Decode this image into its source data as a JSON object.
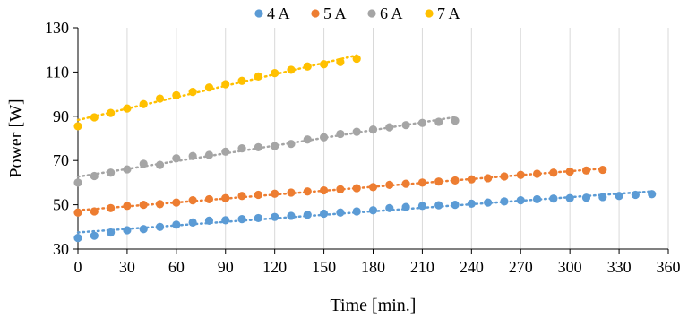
{
  "chart_data": {
    "type": "scatter",
    "title": "",
    "xlabel": "Time [min.]",
    "ylabel": "Power [W]",
    "xlim": [
      0,
      360
    ],
    "ylim": [
      30,
      130
    ],
    "x_ticks": [
      0,
      30,
      60,
      90,
      120,
      150,
      180,
      210,
      240,
      270,
      300,
      330,
      360
    ],
    "y_ticks": [
      30,
      50,
      70,
      90,
      110,
      130
    ],
    "grid": "vertical",
    "legend_position": "top",
    "trendline": "dotted linear",
    "series": [
      {
        "name": "4 A",
        "color": "#5b9bd5",
        "x": [
          0,
          10,
          20,
          30,
          40,
          50,
          60,
          70,
          80,
          90,
          100,
          110,
          120,
          130,
          140,
          150,
          160,
          170,
          180,
          190,
          200,
          210,
          220,
          230,
          240,
          250,
          260,
          270,
          280,
          290,
          300,
          310,
          320,
          330,
          340,
          350
        ],
        "y": [
          35,
          36,
          37.5,
          38.5,
          39,
          40,
          41,
          42,
          42.8,
          43,
          43.5,
          44,
          44.5,
          45,
          45.5,
          46,
          46.5,
          47,
          47.5,
          48.5,
          49,
          49.5,
          49.8,
          50,
          50.5,
          51,
          51.5,
          52,
          52.5,
          52.8,
          53,
          53.2,
          53.5,
          54,
          54.5,
          54.8
        ]
      },
      {
        "name": "5 A",
        "color": "#ed7d31",
        "x": [
          0,
          10,
          20,
          30,
          40,
          50,
          60,
          70,
          80,
          90,
          100,
          110,
          120,
          130,
          140,
          150,
          160,
          170,
          180,
          190,
          200,
          210,
          220,
          230,
          240,
          250,
          260,
          270,
          280,
          290,
          300,
          310,
          320
        ],
        "y": [
          46.5,
          47,
          48.5,
          49.5,
          50,
          50.3,
          51,
          52,
          52.5,
          53,
          54,
          54.5,
          55,
          55.5,
          56,
          56.5,
          57,
          57.5,
          58,
          59,
          59.5,
          60,
          60.5,
          61,
          61.5,
          62,
          62.8,
          63.5,
          64,
          64.5,
          65,
          65.5,
          65.8
        ]
      },
      {
        "name": "6 A",
        "color": "#a5a5a5",
        "x": [
          0,
          10,
          20,
          30,
          40,
          50,
          60,
          70,
          80,
          90,
          100,
          110,
          120,
          130,
          140,
          150,
          160,
          170,
          180,
          190,
          200,
          210,
          220,
          230
        ],
        "y": [
          60,
          63,
          64.5,
          66,
          68.5,
          68,
          71,
          72,
          72.5,
          74,
          75.5,
          76,
          76.5,
          77.5,
          79.5,
          80.5,
          82,
          83,
          84,
          85,
          86,
          87,
          87.5,
          88
        ]
      },
      {
        "name": "7 A",
        "color": "#ffc000",
        "x": [
          0,
          10,
          20,
          30,
          40,
          50,
          60,
          70,
          80,
          90,
          100,
          110,
          120,
          130,
          140,
          150,
          160,
          170
        ],
        "y": [
          85.5,
          89.5,
          91.5,
          93.5,
          95.5,
          98,
          99.5,
          101,
          103,
          104.5,
          106,
          108,
          109.5,
          111,
          112.5,
          113.5,
          114.5,
          116
        ]
      }
    ]
  }
}
